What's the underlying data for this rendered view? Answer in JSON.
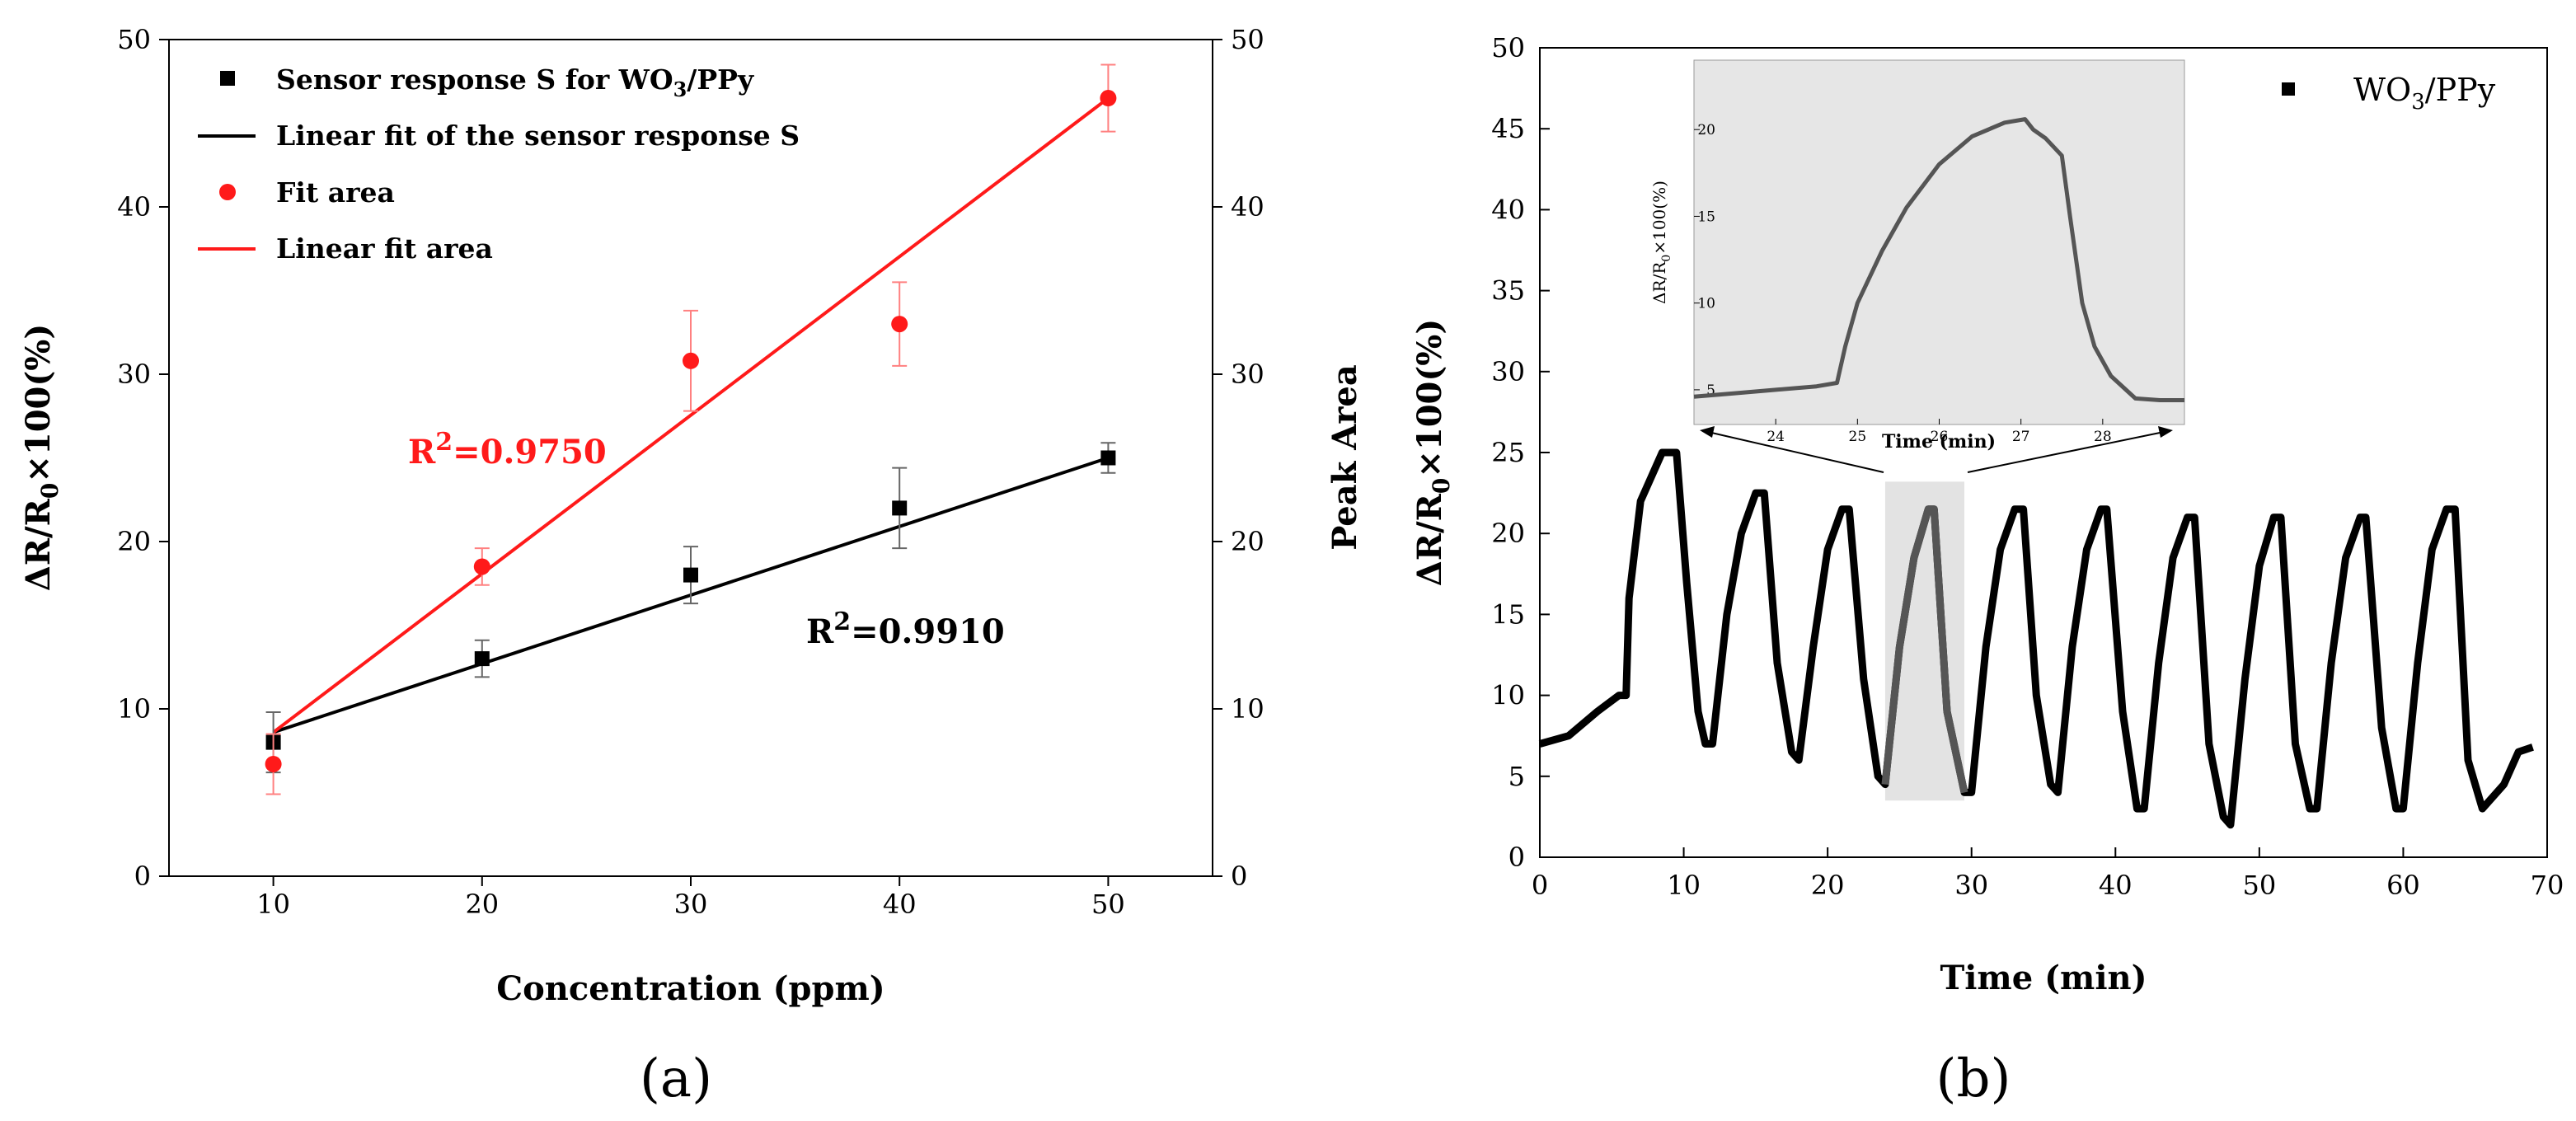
{
  "colors": {
    "black": "#000000",
    "red": "#ff1a1a",
    "inset_bg": "#e6e6e6",
    "highlight": "#d9d9d9",
    "dark_gray": "#555555"
  },
  "chart_data": [
    {
      "id": "a",
      "type": "scatter",
      "panel_label": "(a)",
      "xlabel": "Concentration (ppm)",
      "ylabel": "ΔR/R0×100(%)",
      "y2label": "Peak Area",
      "xlim": [
        5,
        55
      ],
      "ylim": [
        0,
        50
      ],
      "y2lim": [
        0,
        50
      ],
      "xticks": [
        10,
        20,
        30,
        40,
        50
      ],
      "yticks": [
        0,
        10,
        20,
        30,
        40,
        50
      ],
      "series": [
        {
          "name": "Sensor response S for WO3/PPy",
          "kind": "scatter",
          "marker": "square",
          "color": "black",
          "x": [
            10,
            20,
            30,
            40,
            50
          ],
          "y": [
            8,
            13,
            18,
            22,
            25
          ],
          "err": [
            1.8,
            1.1,
            1.7,
            2.4,
            0.9
          ]
        },
        {
          "name": "Linear fit of the sensor response S",
          "kind": "line",
          "color": "black",
          "x": [
            10,
            50
          ],
          "y": [
            8.6,
            25.0
          ]
        },
        {
          "name": "Fit area",
          "kind": "scatter",
          "marker": "circle",
          "color": "red",
          "x": [
            10,
            20,
            30,
            40,
            50
          ],
          "y": [
            6.7,
            18.5,
            30.8,
            33.0,
            46.5
          ],
          "err": [
            1.8,
            1.1,
            3.0,
            2.5,
            2.0
          ]
        },
        {
          "name": "Linear fit area",
          "kind": "line",
          "color": "red",
          "x": [
            10,
            50
          ],
          "y": [
            8.6,
            46.5
          ]
        }
      ],
      "annotations": [
        {
          "text": "R2=0.9750",
          "color": "red"
        },
        {
          "text": "R2=0.9910",
          "color": "black"
        }
      ],
      "legend": {
        "items": [
          "Sensor response S for WO3/PPy",
          "Linear fit of the sensor response S",
          "Fit area",
          "Linear fit area"
        ]
      }
    },
    {
      "id": "b",
      "type": "line",
      "panel_label": "(b)",
      "xlabel": "Time (min)",
      "ylabel": "ΔR/R0×100(%)",
      "xlim": [
        0,
        70
      ],
      "ylim": [
        0,
        50
      ],
      "xticks": [
        0,
        10,
        20,
        30,
        40,
        50,
        60,
        70
      ],
      "yticks": [
        0,
        5,
        10,
        15,
        20,
        25,
        30,
        35,
        40,
        45,
        50
      ],
      "legend": "WO3/PPy",
      "highlight_range": [
        24,
        29.5
      ],
      "series": [
        {
          "name": "WO3/PPy",
          "color": "black",
          "x": [
            0,
            2,
            4,
            5.5,
            6,
            6.2,
            7,
            8.5,
            9.5,
            10.2,
            11,
            11.5,
            12,
            13,
            14,
            15,
            15.6,
            16.5,
            17.5,
            18,
            19,
            20,
            21,
            21.5,
            22.5,
            23.5,
            24,
            25,
            26,
            27,
            27.4,
            28.3,
            29.5,
            30,
            31,
            32,
            33,
            33.6,
            34.5,
            35.5,
            36,
            37,
            38,
            39,
            39.4,
            40.5,
            41.5,
            42,
            43,
            44,
            45,
            45.5,
            46.5,
            47.5,
            48,
            49,
            50,
            51,
            51.5,
            52.5,
            53.5,
            54,
            55,
            56,
            57,
            57.4,
            58.5,
            59.5,
            60,
            61,
            62,
            63,
            63.6,
            64.5,
            65.5,
            67,
            68,
            69
          ],
          "y": [
            7,
            7.5,
            9,
            10,
            10,
            16,
            22,
            25,
            25,
            17,
            9,
            7,
            7,
            15,
            20,
            22.5,
            22.5,
            12,
            6.5,
            6,
            13,
            19,
            21.5,
            21.5,
            11,
            5,
            4.5,
            13,
            18.5,
            21.5,
            21.5,
            9,
            4,
            4,
            13,
            19,
            21.5,
            21.5,
            10,
            4.5,
            4,
            13,
            19,
            21.5,
            21.5,
            9,
            3,
            3,
            12,
            18.5,
            21,
            21,
            7,
            2.5,
            2,
            11,
            18,
            21,
            21,
            7,
            3,
            3,
            12,
            18.5,
            21,
            21,
            8,
            3,
            3,
            12,
            19,
            21.5,
            21.5,
            6,
            3,
            4.5,
            6.5,
            6.8
          ]
        }
      ],
      "inset": {
        "xlabel": "Time (min)",
        "ylabel": "ΔR/R0×100(%)",
        "xlim": [
          23,
          29
        ],
        "ylim": [
          3,
          24
        ],
        "xticks": [
          24,
          25,
          26,
          27,
          28
        ],
        "yticks": [
          5,
          10,
          15,
          20
        ],
        "series": [
          {
            "name": "zoom",
            "color": "dark_gray",
            "x": [
              23,
              23.5,
              24,
              24.5,
              24.75,
              24.85,
              25,
              25.3,
              25.6,
              26,
              26.4,
              26.8,
              27.05,
              27.15,
              27.3,
              27.5,
              27.6,
              27.75,
              27.9,
              28.1,
              28.4,
              28.7,
              29
            ],
            "y": [
              4.6,
              4.8,
              5.0,
              5.2,
              5.4,
              7.5,
              10,
              13,
              15.5,
              18,
              19.6,
              20.4,
              20.6,
              20,
              19.5,
              18.5,
              15,
              10,
              7.5,
              5.8,
              4.5,
              4.4,
              4.4
            ]
          }
        ]
      }
    }
  ]
}
